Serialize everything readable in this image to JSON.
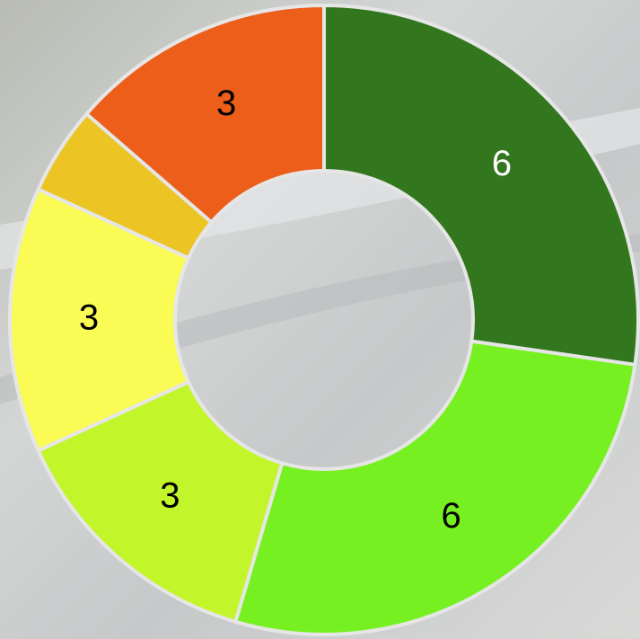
{
  "chart_data": {
    "type": "donut",
    "values": [
      6,
      6,
      3,
      3,
      1,
      3
    ],
    "colors": [
      "#32761e",
      "#77f022",
      "#c3f52b",
      "#fafc55",
      "#ecc423",
      "#ec5e1a"
    ],
    "label_colors": [
      "#ffffff",
      "#000000",
      "#000000",
      "#000000",
      "#000000",
      "#000000"
    ]
  }
}
